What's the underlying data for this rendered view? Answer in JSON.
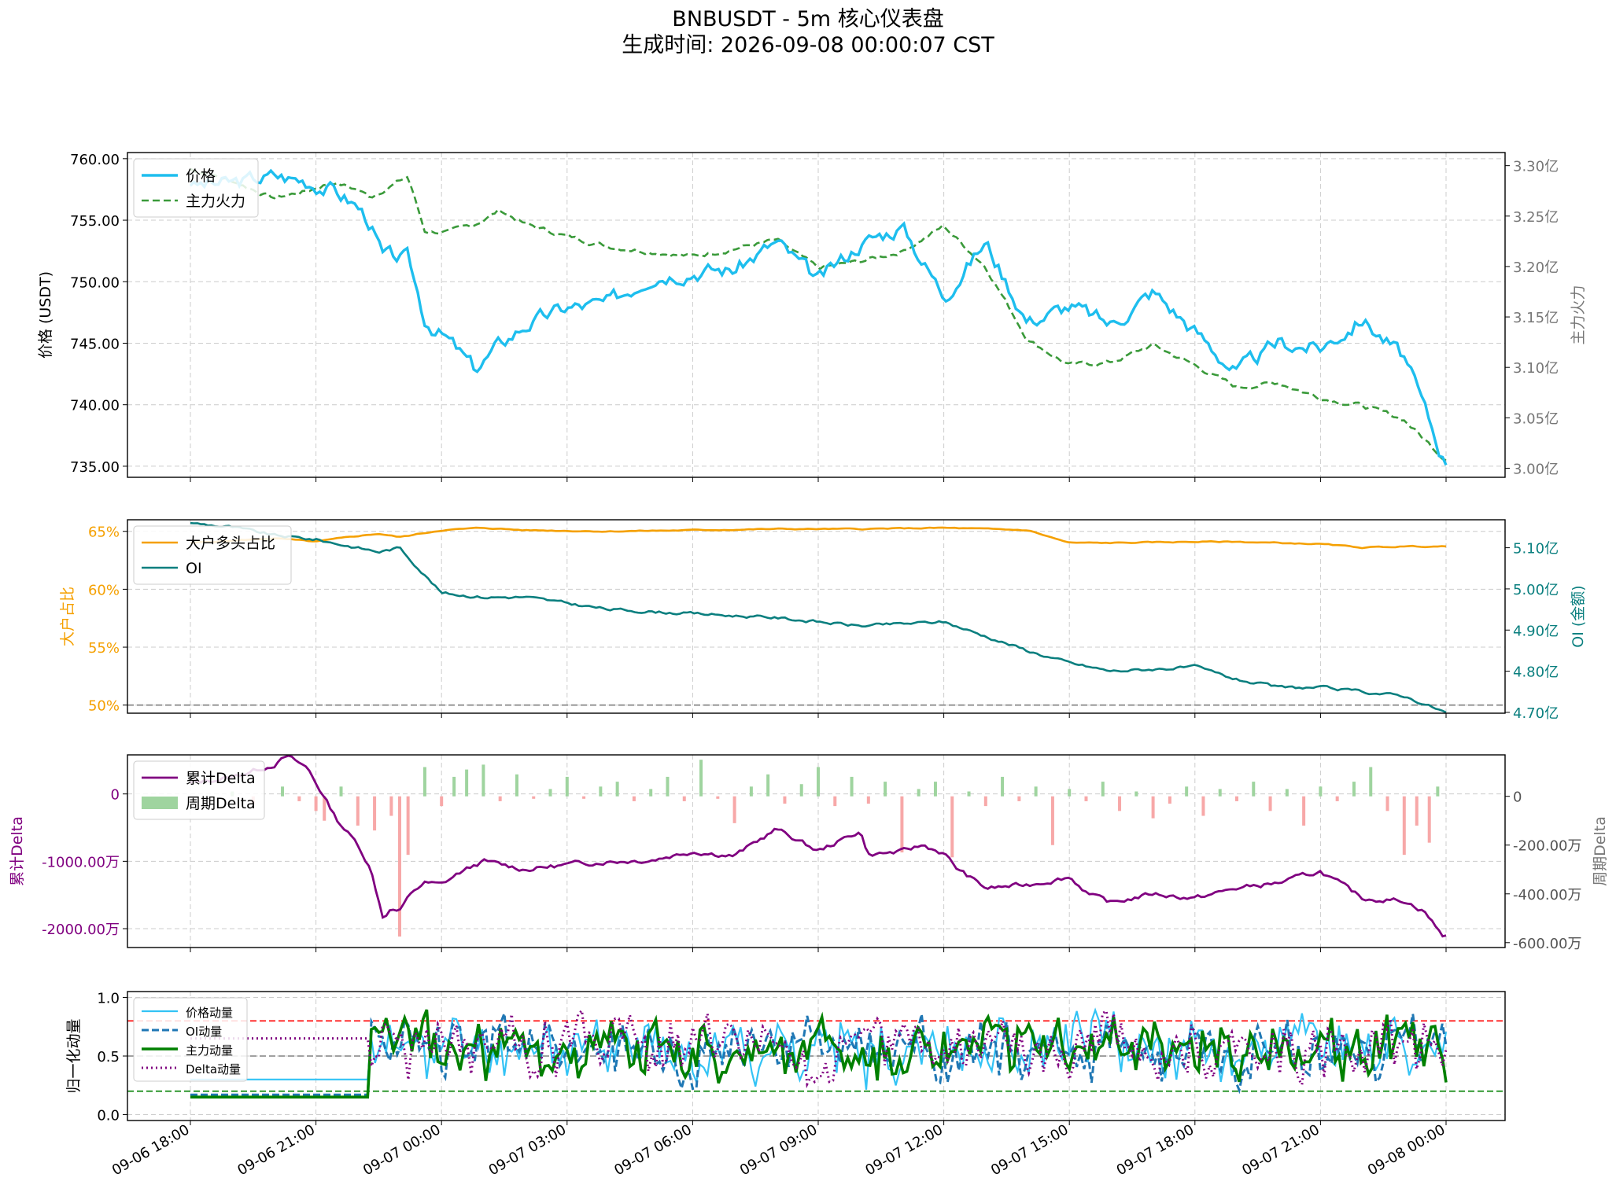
{
  "figure": {
    "title": "BNBUSDT - 5m 核心仪表盘",
    "subtitle": "生成时间: 2026-09-08 00:00:07 CST"
  },
  "colors": {
    "price": "#1ebeee",
    "main_force": "#3a9a3a",
    "top_ratio": "#f5a000",
    "oi": "#0a7f7f",
    "cum_delta": "#800080",
    "bar_pos": "#9fd49f",
    "bar_neg": "#f7a8a8",
    "mom_price": "#33c3f5",
    "mom_oi": "#1f77b4",
    "mom_main": "#008000",
    "mom_delta": "#800080",
    "ref_high": "#ff0000",
    "ref_mid": "#808080",
    "ref_low": "#008000",
    "grid": "#cccccc"
  },
  "x_ticks": [
    "09-06 18:00",
    "09-06 21:00",
    "09-07 00:00",
    "09-07 03:00",
    "09-07 06:00",
    "09-07 09:00",
    "09-07 12:00",
    "09-07 15:00",
    "09-07 18:00",
    "09-07 21:00",
    "09-08 00:00"
  ],
  "chart_data": [
    {
      "type": "line",
      "panel": "price",
      "ylabel": "价格 (USDT)",
      "y2label": "主力火力",
      "ylim": [
        734.1,
        760.5
      ],
      "y2lim": [
        2.991,
        3.313
      ],
      "yticks": [
        "735.00",
        "740.00",
        "745.00",
        "750.00",
        "755.00",
        "760.00"
      ],
      "y2ticks": [
        "3.00亿",
        "3.05亿",
        "3.10亿",
        "3.15亿",
        "3.20亿",
        "3.25亿",
        "3.30亿"
      ],
      "legend": [
        "价格",
        "主力火力"
      ],
      "legend_position": "upper-left",
      "x_hours": [
        0,
        1,
        2,
        2.8,
        3.4,
        4,
        4.3,
        4.6,
        5.2,
        5.6,
        6.2,
        6.8,
        7.4,
        8,
        9,
        10,
        11,
        12,
        13,
        14,
        15,
        16,
        17,
        18,
        19,
        20,
        21,
        22,
        23,
        24,
        25,
        26,
        27,
        28,
        29,
        30
      ],
      "series": [
        {
          "name": "价格",
          "axis": "left",
          "values": [
            757.8,
            758.0,
            758.6,
            758.2,
            757.5,
            756.1,
            754.8,
            752.0,
            751.8,
            747.0,
            745.1,
            742.8,
            744.9,
            746.5,
            747.9,
            748.2,
            750.6,
            750.9,
            751.0,
            753.2,
            750.0,
            753.1,
            754.5,
            748.9,
            753.2,
            746.8,
            748.0,
            746.5,
            749.2,
            746.0,
            742.6,
            745.0,
            744.6,
            747.0,
            743.8,
            735.1
          ]
        },
        {
          "name": "主力火力",
          "axis": "right",
          "values": [
            3.297,
            3.285,
            3.268,
            3.275,
            3.284,
            3.276,
            3.269,
            3.276,
            3.289,
            3.235,
            3.234,
            3.242,
            3.256,
            3.242,
            3.23,
            3.22,
            3.215,
            3.21,
            3.218,
            3.226,
            3.198,
            3.205,
            3.215,
            3.24,
            3.2,
            3.128,
            3.102,
            3.105,
            3.122,
            3.102,
            3.08,
            3.085,
            3.07,
            3.062,
            3.048,
            3.008
          ]
        }
      ]
    },
    {
      "type": "line",
      "panel": "positioning",
      "ylabel": "大户占比",
      "y2label": "OI (金额)",
      "ylim": [
        49.3,
        66.0
      ],
      "y2lim": [
        4.698,
        5.168
      ],
      "yticks": [
        "50%",
        "55%",
        "60%",
        "65%"
      ],
      "y2ticks": [
        "4.70亿",
        "4.80亿",
        "4.90亿",
        "5.00亿",
        "5.10亿"
      ],
      "legend": [
        "大户多头占比",
        "OI"
      ],
      "legend_position": "upper-left",
      "reference_line": 50,
      "x_hours": [
        0,
        1,
        2,
        3,
        4,
        4.5,
        5,
        6,
        7,
        8,
        10,
        12,
        14,
        16,
        18,
        20,
        21,
        22,
        24,
        25,
        26,
        27,
        28,
        29,
        30
      ],
      "series": [
        {
          "name": "大户多头占比",
          "axis": "left",
          "values": [
            64.0,
            64.2,
            64.4,
            64.1,
            64.6,
            64.8,
            64.5,
            65.1,
            65.3,
            65.1,
            65.0,
            65.1,
            65.2,
            65.2,
            65.3,
            65.1,
            64.0,
            64.0,
            64.1,
            64.1,
            64.0,
            63.9,
            63.6,
            63.7,
            63.7
          ]
        },
        {
          "name": "OI",
          "axis": "right",
          "values": [
            5.16,
            5.15,
            5.13,
            5.12,
            5.1,
            5.09,
            5.1,
            4.99,
            4.98,
            4.98,
            4.95,
            4.94,
            4.93,
            4.91,
            4.92,
            4.85,
            4.82,
            4.8,
            4.81,
            4.78,
            4.76,
            4.76,
            4.75,
            4.74,
            4.7
          ]
        }
      ]
    },
    {
      "type": "bar",
      "panel": "delta",
      "ylabel": "累计Delta",
      "y2label": "周期Delta",
      "ylim": [
        -2280,
        580
      ],
      "y2lim": [
        -620,
        170
      ],
      "yticks": [
        "-2000.00万",
        "-1000.00万",
        "0"
      ],
      "y2ticks": [
        "-600.00万",
        "-400.00万",
        "-200.00万",
        "0"
      ],
      "legend": [
        "累计Delta",
        "周期Delta"
      ],
      "legend_position": "upper-left",
      "series": [
        {
          "name": "累计Delta",
          "type": "line",
          "axis": "left",
          "x_hours": [
            0,
            1,
            2,
            2.3,
            2.8,
            3.2,
            3.5,
            4,
            4.3,
            4.6,
            4.8,
            5,
            5.3,
            5.6,
            6,
            6.4,
            7,
            8,
            9,
            10,
            11,
            12,
            13,
            14,
            15,
            16,
            16.2,
            17,
            17.5,
            18,
            18.3,
            19,
            20,
            21,
            21.5,
            22,
            23,
            24,
            25,
            26,
            27,
            28,
            29,
            29.5,
            29.9
          ],
          "values": [
            160,
            250,
            440,
            560,
            380,
            -50,
            -380,
            -750,
            -1100,
            -1820,
            -1700,
            -1750,
            -1450,
            -1320,
            -1350,
            -1180,
            -1000,
            -1120,
            -1050,
            -1000,
            -980,
            -850,
            -920,
            -520,
            -850,
            -550,
            -900,
            -860,
            -760,
            -880,
            -1100,
            -1400,
            -1350,
            -1230,
            -1500,
            -1620,
            -1480,
            -1550,
            -1400,
            -1320,
            -1150,
            -1550,
            -1580,
            -1750,
            -2100
          ]
        },
        {
          "name": "周期Delta",
          "type": "bar",
          "axis": "right",
          "x_hours": [
            1.0,
            1.5,
            2.2,
            2.6,
            3.0,
            3.2,
            3.6,
            4.0,
            4.4,
            4.8,
            5.0,
            5.2,
            5.6,
            6.0,
            6.3,
            6.6,
            7.0,
            7.4,
            7.8,
            8.2,
            8.6,
            9.0,
            9.4,
            9.8,
            10.2,
            10.6,
            11.0,
            11.4,
            11.8,
            12.2,
            12.6,
            13.0,
            13.4,
            13.8,
            14.2,
            14.6,
            15.0,
            15.4,
            15.8,
            16.2,
            16.6,
            17.0,
            17.4,
            17.8,
            18.2,
            18.6,
            19.0,
            19.4,
            19.8,
            20.2,
            20.6,
            21.0,
            21.4,
            21.8,
            22.2,
            22.6,
            23.0,
            23.4,
            23.8,
            24.2,
            24.6,
            25.0,
            25.4,
            25.8,
            26.2,
            26.6,
            27.0,
            27.4,
            27.8,
            28.2,
            28.6,
            29.0,
            29.3,
            29.6,
            29.8
          ],
          "values": [
            20,
            -30,
            40,
            -20,
            -60,
            -100,
            40,
            -120,
            -140,
            -80,
            -575,
            -240,
            120,
            -40,
            80,
            110,
            130,
            -20,
            90,
            -10,
            30,
            80,
            -10,
            40,
            60,
            -20,
            30,
            80,
            -20,
            150,
            -10,
            -110,
            40,
            90,
            -30,
            50,
            120,
            -40,
            80,
            -30,
            60,
            -230,
            30,
            60,
            -250,
            20,
            -40,
            80,
            -20,
            40,
            -200,
            30,
            -20,
            60,
            -60,
            20,
            -90,
            -30,
            40,
            -80,
            30,
            -20,
            60,
            -60,
            30,
            -120,
            40,
            -20,
            60,
            120,
            -60,
            -240,
            -120,
            -190,
            40
          ]
        }
      ]
    },
    {
      "type": "line",
      "panel": "momentum",
      "ylabel": "归一化动量",
      "ylim": [
        -0.05,
        1.05
      ],
      "yticks": [
        "0.0",
        "0.5",
        "1.0"
      ],
      "legend": [
        "价格动量",
        "OI动量",
        "主力动量",
        "Delta动量"
      ],
      "legend_position": "upper-left",
      "reference_lines": [
        0.8,
        0.5,
        0.2
      ],
      "series": [
        {
          "name": "价格动量",
          "flat_until_hour": 4.3,
          "flat_value": 0.3,
          "seed": 11
        },
        {
          "name": "OI动量",
          "flat_until_hour": 4.3,
          "flat_value": 0.17,
          "seed": 23
        },
        {
          "name": "主力动量",
          "flat_until_hour": 4.3,
          "flat_value": 0.15,
          "seed": 37
        },
        {
          "name": "Delta动量",
          "flat_until_hour": 4.3,
          "flat_value": 0.65,
          "seed": 51
        }
      ]
    }
  ]
}
